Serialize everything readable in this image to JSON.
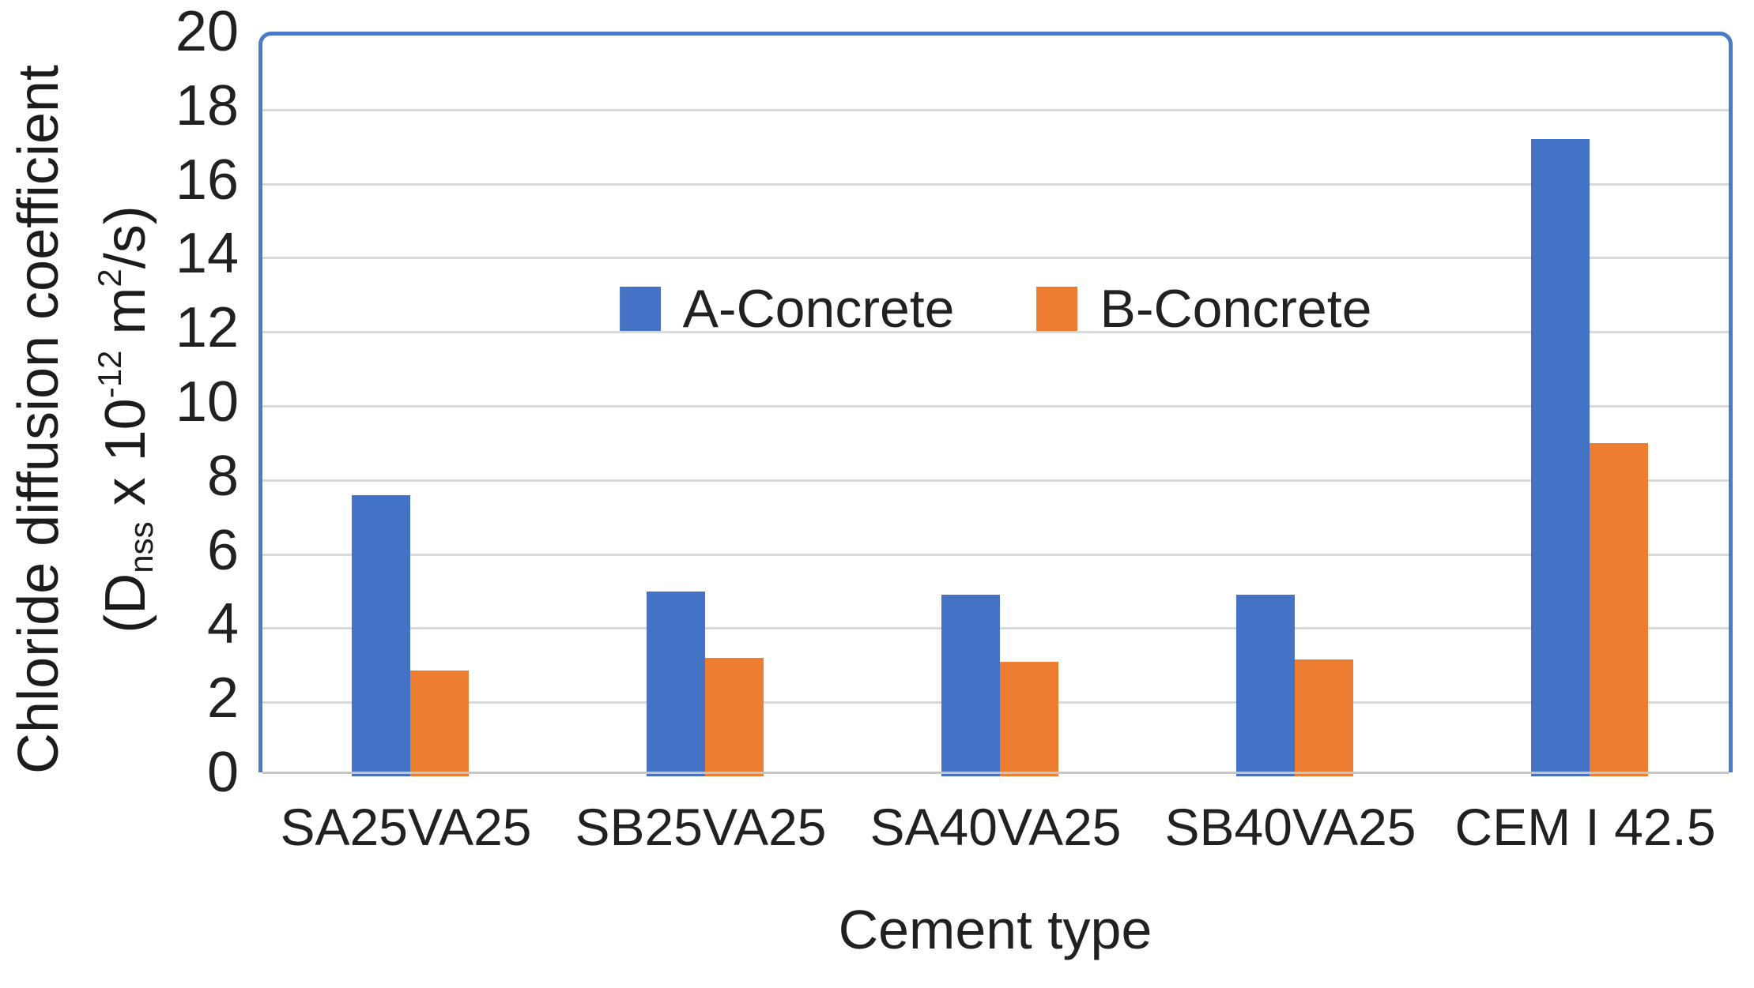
{
  "chart_data": {
    "type": "bar",
    "title": "",
    "categories": [
      "SA25VA25",
      "SB25VA25",
      "SA40VA25",
      "SB40VA25",
      "CEM I 42.5"
    ],
    "series": [
      {
        "name": "A-Concrete",
        "color": "#4472C4",
        "values": [
          7.6,
          5.0,
          4.9,
          4.9,
          17.2
        ]
      },
      {
        "name": "B-Concrete",
        "color": "#ED7D31",
        "values": [
          2.85,
          3.2,
          3.1,
          3.15,
          9.0
        ]
      }
    ],
    "xlabel": "Cement type",
    "ylabel_line1": "Chloride diffusion coefficient",
    "ylabel_line2": {
      "open": "(D",
      "sub": "nss",
      "mul": " x 10",
      "exp": "-12",
      "unit": " m",
      "unit_exp": "2",
      "close": "/s)"
    },
    "ylim": [
      0,
      20
    ],
    "ytick_step": 2,
    "yticks": [
      0,
      2,
      4,
      6,
      8,
      10,
      12,
      14,
      16,
      18,
      20
    ],
    "grid": true,
    "legend_position": "inside-top-center",
    "colors": {
      "series_a": "#4472C4",
      "series_b": "#ED7D31",
      "plot_border": "#4C7BC6",
      "gridline": "#D9D9D9",
      "axis_line": "#C6C6C6",
      "text": "#212121"
    }
  }
}
